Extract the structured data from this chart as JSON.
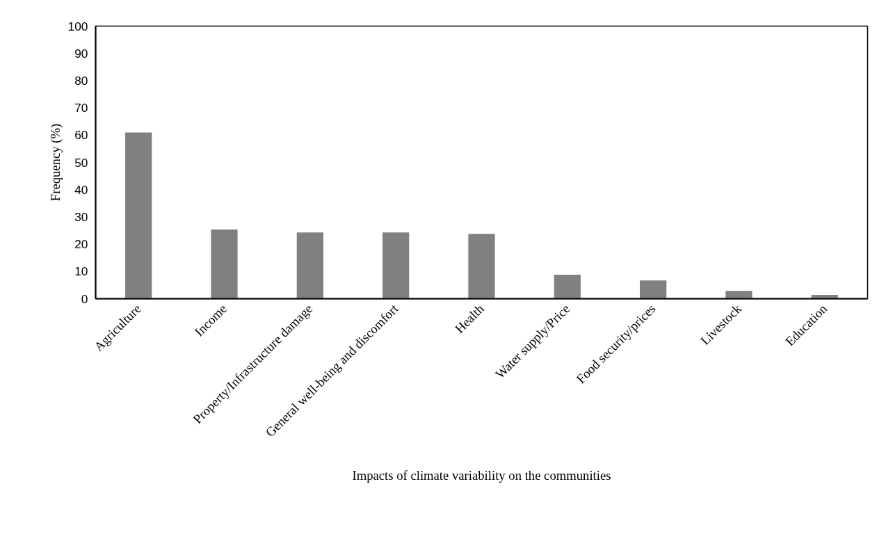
{
  "chart_data": {
    "type": "bar",
    "xlabel": "Impacts of climate variability on the communities",
    "ylabel": "Frequency (%)",
    "categories": [
      "Agriculture",
      "Income",
      "Property/Infrastructure damage",
      "General well-being and discomfort",
      "Health",
      "Water supply/Price",
      "Food security/prices",
      "Livestock",
      "Education"
    ],
    "values": [
      61,
      25.4,
      24.3,
      24.3,
      23.8,
      8.8,
      6.7,
      2.9,
      1.4
    ],
    "color": "#808080",
    "ylim": [
      0,
      100
    ],
    "yticks": [
      0,
      10,
      20,
      30,
      40,
      50,
      60,
      70,
      80,
      90,
      100
    ],
    "grid": false
  }
}
